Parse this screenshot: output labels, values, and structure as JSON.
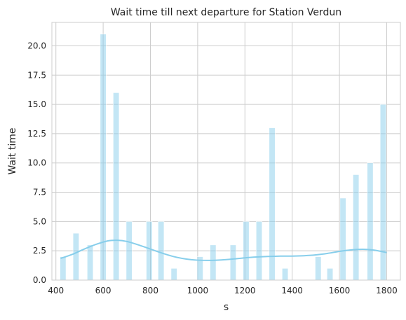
{
  "chart_data": {
    "type": "bar",
    "title": "Wait time till next departure for Station Verdun",
    "xlabel": "s",
    "ylabel": "Wait time",
    "xlim": [
      383,
      1858
    ],
    "ylim": [
      0,
      22
    ],
    "xticks": [
      "400",
      "600",
      "800",
      "1000",
      "1200",
      "1400",
      "1600",
      "1800"
    ],
    "yticks": [
      "0.0",
      "2.5",
      "5.0",
      "7.5",
      "10.0",
      "12.5",
      "15.0",
      "17.5",
      "20.0"
    ],
    "grid": true,
    "bar_color": "#87CEEB",
    "kde_color": "#87CEEB",
    "bars": [
      {
        "x": 430,
        "value": 2
      },
      {
        "x": 485,
        "value": 4
      },
      {
        "x": 545,
        "value": 3
      },
      {
        "x": 600,
        "value": 21
      },
      {
        "x": 655,
        "value": 16
      },
      {
        "x": 710,
        "value": 5
      },
      {
        "x": 795,
        "value": 5
      },
      {
        "x": 845,
        "value": 5
      },
      {
        "x": 900,
        "value": 1
      },
      {
        "x": 1010,
        "value": 2
      },
      {
        "x": 1065,
        "value": 3
      },
      {
        "x": 1150,
        "value": 3
      },
      {
        "x": 1205,
        "value": 5
      },
      {
        "x": 1260,
        "value": 5
      },
      {
        "x": 1315,
        "value": 13
      },
      {
        "x": 1370,
        "value": 1
      },
      {
        "x": 1510,
        "value": 2
      },
      {
        "x": 1560,
        "value": 1
      },
      {
        "x": 1615,
        "value": 7
      },
      {
        "x": 1670,
        "value": 9
      },
      {
        "x": 1730,
        "value": 10
      },
      {
        "x": 1785,
        "value": 15
      }
    ],
    "kde": {
      "x": [
        420,
        470,
        520,
        570,
        620,
        660,
        700,
        750,
        800,
        850,
        900,
        950,
        1000,
        1050,
        1100,
        1150,
        1200,
        1250,
        1300,
        1350,
        1400,
        1450,
        1500,
        1550,
        1600,
        1650,
        1700,
        1750,
        1800
      ],
      "y": [
        1.85,
        2.2,
        2.65,
        3.05,
        3.35,
        3.4,
        3.3,
        3.0,
        2.65,
        2.3,
        2.0,
        1.8,
        1.7,
        1.68,
        1.72,
        1.8,
        1.9,
        1.97,
        2.02,
        2.05,
        2.05,
        2.08,
        2.15,
        2.28,
        2.45,
        2.58,
        2.63,
        2.55,
        2.35
      ]
    }
  }
}
